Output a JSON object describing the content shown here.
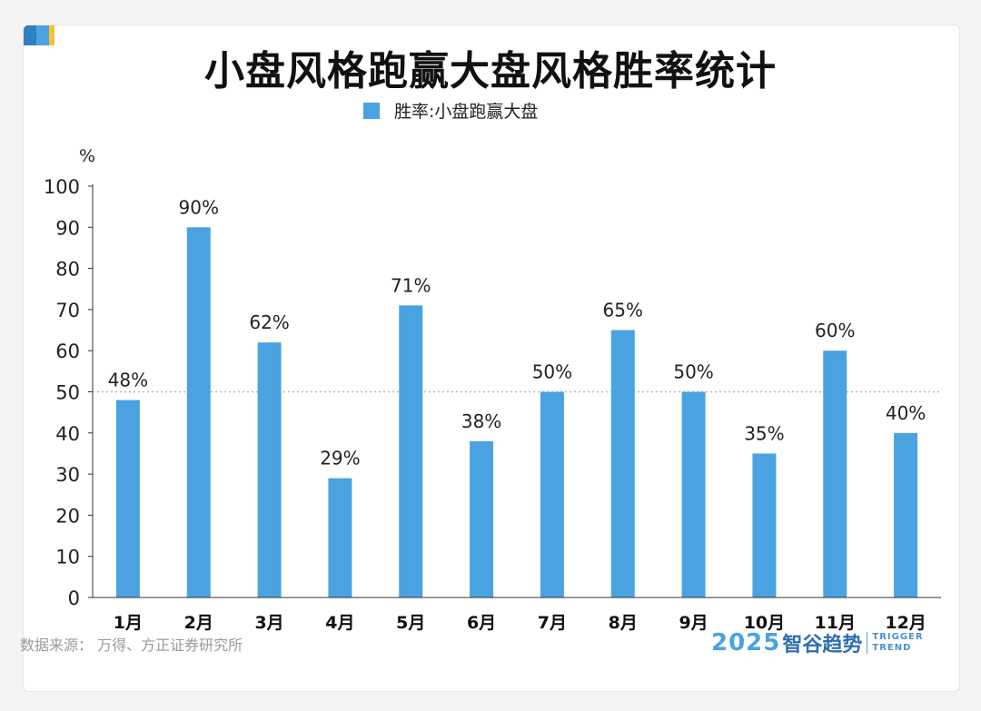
{
  "title": "小盘风格跑赢大盘风格胜率统计",
  "source": "数据来源：  万得、方正证券研究所",
  "brand": {
    "year": "2025",
    "name": "智谷趋势",
    "en_line1": "TRIGGER",
    "en_line2": "TREND"
  },
  "colors": {
    "bar": "#4aa3e0",
    "reference_line": "#b5b5b5",
    "accent_dark": "#2f7fc1",
    "accent_yellow": "#f3c237"
  },
  "chart_data": {
    "type": "bar",
    "title": "小盘风格跑赢大盘风格胜率统计",
    "ylabel": "%",
    "xlabel": "",
    "ylim": [
      0,
      100
    ],
    "yticks": [
      0,
      10,
      20,
      30,
      40,
      50,
      60,
      70,
      80,
      90,
      100
    ],
    "categories": [
      "1月",
      "2月",
      "3月",
      "4月",
      "5月",
      "6月",
      "7月",
      "8月",
      "9月",
      "10月",
      "11月",
      "12月"
    ],
    "series": [
      {
        "name": "胜率:小盘跑赢大盘",
        "values": [
          48,
          90,
          62,
          29,
          71,
          38,
          50,
          65,
          50,
          35,
          60,
          40
        ],
        "labels": [
          "48%",
          "90%",
          "62%",
          "29%",
          "71%",
          "38%",
          "50%",
          "65%",
          "50%",
          "35%",
          "60%",
          "40%"
        ]
      }
    ],
    "reference_line": {
      "y": 50,
      "style": "dotted"
    },
    "grid": false,
    "legend_position": "top-center"
  }
}
